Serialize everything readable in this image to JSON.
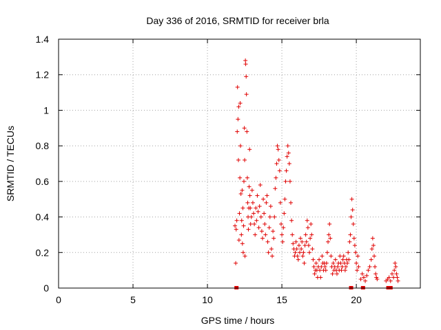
{
  "chart_data": {
    "type": "scatter",
    "title": "Day 336 of 2016, SRMTID for receiver brla",
    "xlabel": "GPS time / hours",
    "ylabel": "SRMTID / TECUs",
    "xlim": [
      0,
      24.3
    ],
    "ylim": [
      0,
      1.4
    ],
    "xticks": [
      0,
      5,
      10,
      15,
      20
    ],
    "yticks": [
      0,
      0.2,
      0.4,
      0.6,
      0.8,
      1,
      1.2,
      1.4
    ],
    "xtick_labels": [
      "0",
      "5",
      "10",
      "15",
      "20"
    ],
    "ytick_labels": [
      "0",
      "0.2",
      "0.4",
      "0.6",
      "0.8",
      "1",
      "1.2",
      "1.4"
    ],
    "grid": true,
    "marker": "+",
    "color": "#e00000",
    "series": [
      {
        "name": "SRMTID",
        "points": [
          [
            11.85,
            0.35
          ],
          [
            11.9,
            0.14
          ],
          [
            11.93,
            0.33
          ],
          [
            11.97,
            0.38
          ],
          [
            12.0,
            0.88
          ],
          [
            12.02,
            1.13
          ],
          [
            12.05,
            0.95
          ],
          [
            12.08,
            0.72
          ],
          [
            12.1,
            1.02
          ],
          [
            12.12,
            0.27
          ],
          [
            12.15,
            0.42
          ],
          [
            12.18,
            0.62
          ],
          [
            12.2,
            1.04
          ],
          [
            12.22,
            0.8
          ],
          [
            12.25,
            0.53
          ],
          [
            12.28,
            0.3
          ],
          [
            12.3,
            0.38
          ],
          [
            12.33,
            0.55
          ],
          [
            12.35,
            0.25
          ],
          [
            12.38,
            0.45
          ],
          [
            12.4,
            0.2
          ],
          [
            12.43,
            0.35
          ],
          [
            12.45,
            0.6
          ],
          [
            12.48,
            0.9
          ],
          [
            12.5,
            0.72
          ],
          [
            12.52,
            0.18
          ],
          [
            12.55,
            1.28
          ],
          [
            12.57,
            1.26
          ],
          [
            12.6,
            1.19
          ],
          [
            12.62,
            1.09
          ],
          [
            12.65,
            0.88
          ],
          [
            12.68,
            0.62
          ],
          [
            12.7,
            0.48
          ],
          [
            12.73,
            0.4
          ],
          [
            12.75,
            0.33
          ],
          [
            12.78,
            0.45
          ],
          [
            12.8,
            0.57
          ],
          [
            12.83,
            0.78
          ],
          [
            12.85,
            0.52
          ],
          [
            12.88,
            0.45
          ],
          [
            12.9,
            0.36
          ],
          [
            12.95,
            0.4
          ],
          [
            13.0,
            0.55
          ],
          [
            13.05,
            0.48
          ],
          [
            13.1,
            0.42
          ],
          [
            13.15,
            0.36
          ],
          [
            13.2,
            0.3
          ],
          [
            13.25,
            0.45
          ],
          [
            13.3,
            0.38
          ],
          [
            13.35,
            0.52
          ],
          [
            13.4,
            0.43
          ],
          [
            13.45,
            0.34
          ],
          [
            13.5,
            0.46
          ],
          [
            13.55,
            0.58
          ],
          [
            13.6,
            0.4
          ],
          [
            13.65,
            0.32
          ],
          [
            13.7,
            0.28
          ],
          [
            13.75,
            0.5
          ],
          [
            13.8,
            0.42
          ],
          [
            13.85,
            0.36
          ],
          [
            13.9,
            0.3
          ],
          [
            13.95,
            0.48
          ],
          [
            14.0,
            0.52
          ],
          [
            14.05,
            0.26
          ],
          [
            14.1,
            0.2
          ],
          [
            14.15,
            0.34
          ],
          [
            14.2,
            0.4
          ],
          [
            14.25,
            0.46
          ],
          [
            14.3,
            0.22
          ],
          [
            14.35,
            0.18
          ],
          [
            14.4,
            0.32
          ],
          [
            14.45,
            0.28
          ],
          [
            14.5,
            0.4
          ],
          [
            14.55,
            0.56
          ],
          [
            14.6,
            0.62
          ],
          [
            14.65,
            0.7
          ],
          [
            14.7,
            0.8
          ],
          [
            14.75,
            0.78
          ],
          [
            14.8,
            0.72
          ],
          [
            14.85,
            0.66
          ],
          [
            14.9,
            0.48
          ],
          [
            14.95,
            0.36
          ],
          [
            15.0,
            0.3
          ],
          [
            15.05,
            0.26
          ],
          [
            15.1,
            0.34
          ],
          [
            15.15,
            0.42
          ],
          [
            15.2,
            0.5
          ],
          [
            15.25,
            0.6
          ],
          [
            15.3,
            0.66
          ],
          [
            15.35,
            0.74
          ],
          [
            15.4,
            0.8
          ],
          [
            15.45,
            0.76
          ],
          [
            15.5,
            0.7
          ],
          [
            15.55,
            0.6
          ],
          [
            15.6,
            0.48
          ],
          [
            15.65,
            0.38
          ],
          [
            15.7,
            0.3
          ],
          [
            15.75,
            0.25
          ],
          [
            15.8,
            0.22
          ],
          [
            15.85,
            0.18
          ],
          [
            15.9,
            0.2
          ],
          [
            15.95,
            0.26
          ],
          [
            16.0,
            0.22
          ],
          [
            16.05,
            0.18
          ],
          [
            16.1,
            0.16
          ],
          [
            16.15,
            0.24
          ],
          [
            16.2,
            0.2
          ],
          [
            16.25,
            0.28
          ],
          [
            16.3,
            0.22
          ],
          [
            16.35,
            0.26
          ],
          [
            16.4,
            0.18
          ],
          [
            16.45,
            0.2
          ],
          [
            16.5,
            0.14
          ],
          [
            16.55,
            0.24
          ],
          [
            16.6,
            0.3
          ],
          [
            16.65,
            0.26
          ],
          [
            16.7,
            0.38
          ],
          [
            16.75,
            0.34
          ],
          [
            16.8,
            0.24
          ],
          [
            16.85,
            0.2
          ],
          [
            16.9,
            0.28
          ],
          [
            16.95,
            0.36
          ],
          [
            17.0,
            0.3
          ],
          [
            17.05,
            0.22
          ],
          [
            17.1,
            0.16
          ],
          [
            17.15,
            0.12
          ],
          [
            17.2,
            0.08
          ],
          [
            17.25,
            0.1
          ],
          [
            17.3,
            0.14
          ],
          [
            17.35,
            0.1
          ],
          [
            17.4,
            0.06
          ],
          [
            17.45,
            0.12
          ],
          [
            17.5,
            0.16
          ],
          [
            17.55,
            0.1
          ],
          [
            17.6,
            0.06
          ],
          [
            17.65,
            0.12
          ],
          [
            17.7,
            0.18
          ],
          [
            17.75,
            0.14
          ],
          [
            17.8,
            0.1
          ],
          [
            17.85,
            0.14
          ],
          [
            17.9,
            0.12
          ],
          [
            17.95,
            0.1
          ],
          [
            18.0,
            0.14
          ],
          [
            18.05,
            0.2
          ],
          [
            18.1,
            0.26
          ],
          [
            18.15,
            0.3
          ],
          [
            18.2,
            0.36
          ],
          [
            18.25,
            0.28
          ],
          [
            18.3,
            0.18
          ],
          [
            18.35,
            0.12
          ],
          [
            18.4,
            0.08
          ],
          [
            18.45,
            0.14
          ],
          [
            18.5,
            0.1
          ],
          [
            18.55,
            0.12
          ],
          [
            18.6,
            0.16
          ],
          [
            18.65,
            0.1
          ],
          [
            18.7,
            0.08
          ],
          [
            18.75,
            0.12
          ],
          [
            18.8,
            0.14
          ],
          [
            18.85,
            0.1
          ],
          [
            18.9,
            0.18
          ],
          [
            18.95,
            0.14
          ],
          [
            19.0,
            0.1
          ],
          [
            19.05,
            0.12
          ],
          [
            19.1,
            0.16
          ],
          [
            19.15,
            0.18
          ],
          [
            19.2,
            0.14
          ],
          [
            19.25,
            0.1
          ],
          [
            19.3,
            0.12
          ],
          [
            19.35,
            0.16
          ],
          [
            19.4,
            0.14
          ],
          [
            19.45,
            0.2
          ],
          [
            19.5,
            0.16
          ],
          [
            19.55,
            0.26
          ],
          [
            19.6,
            0.3
          ],
          [
            19.65,
            0.4
          ],
          [
            19.7,
            0.5
          ],
          [
            19.75,
            0.44
          ],
          [
            19.8,
            0.36
          ],
          [
            19.85,
            0.28
          ],
          [
            19.9,
            0.24
          ],
          [
            19.95,
            0.2
          ],
          [
            20.0,
            0.14
          ],
          [
            20.05,
            0.1
          ],
          [
            20.1,
            0.18
          ],
          [
            20.15,
            0.12
          ],
          [
            20.3,
            0.05
          ],
          [
            20.4,
            0.08
          ],
          [
            20.5,
            0.06
          ],
          [
            20.6,
            0.04
          ],
          [
            20.7,
            0.07
          ],
          [
            20.8,
            0.1
          ],
          [
            20.9,
            0.12
          ],
          [
            21.0,
            0.16
          ],
          [
            21.05,
            0.22
          ],
          [
            21.1,
            0.28
          ],
          [
            21.15,
            0.24
          ],
          [
            21.2,
            0.18
          ],
          [
            21.25,
            0.12
          ],
          [
            21.3,
            0.08
          ],
          [
            21.35,
            0.06
          ],
          [
            21.4,
            0.05
          ],
          [
            22.0,
            0.04
          ],
          [
            22.1,
            0.05
          ],
          [
            22.2,
            0.06
          ],
          [
            22.3,
            0.04
          ],
          [
            22.4,
            0.08
          ],
          [
            22.5,
            0.06
          ],
          [
            22.55,
            0.1
          ],
          [
            22.6,
            0.14
          ],
          [
            22.65,
            0.12
          ],
          [
            22.7,
            0.08
          ],
          [
            22.75,
            0.06
          ],
          [
            22.8,
            0.04
          ]
        ]
      }
    ],
    "zero_markers_x": [
      11.95,
      19.65,
      20.45,
      22.15,
      22.3
    ]
  }
}
